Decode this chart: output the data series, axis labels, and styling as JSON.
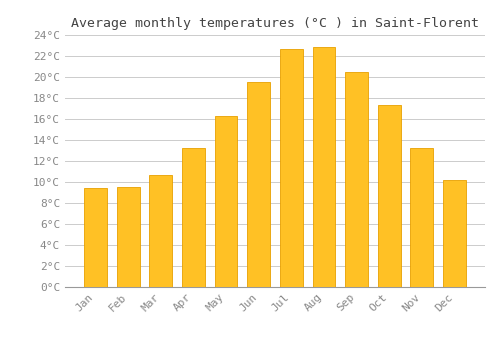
{
  "title": "Average monthly temperatures (°C ) in Saint-Florent",
  "months": [
    "Jan",
    "Feb",
    "Mar",
    "Apr",
    "May",
    "Jun",
    "Jul",
    "Aug",
    "Sep",
    "Oct",
    "Nov",
    "Dec"
  ],
  "values": [
    9.4,
    9.5,
    10.7,
    13.2,
    16.3,
    19.5,
    22.7,
    22.9,
    20.5,
    17.3,
    13.2,
    10.2
  ],
  "bar_color": "#FFC125",
  "bar_edge_color": "#E8A000",
  "background_color": "#FFFFFF",
  "grid_color": "#CCCCCC",
  "tick_label_color": "#888888",
  "title_color": "#444444",
  "ylim": [
    0,
    24
  ],
  "yticks": [
    0,
    2,
    4,
    6,
    8,
    10,
    12,
    14,
    16,
    18,
    20,
    22,
    24
  ],
  "title_fontsize": 9.5,
  "tick_fontsize": 8,
  "font_family": "monospace",
  "bar_width": 0.7
}
